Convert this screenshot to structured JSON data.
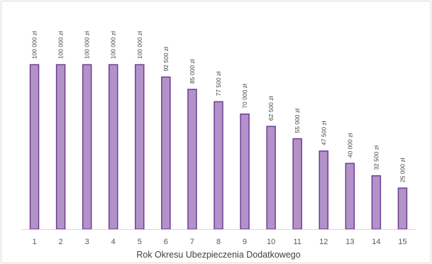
{
  "chart_data": {
    "type": "bar",
    "title": "",
    "xlabel": "Rok Okresu Ubezpieczenia Dodatkowego",
    "ylabel": "",
    "ylim": [
      0,
      135000
    ],
    "grid": false,
    "legend": "none",
    "colors": {
      "bar_fill": "#b392c9",
      "bar_stroke": "#6f3c93",
      "axis": "#d9d9d9"
    },
    "categories": [
      "1",
      "2",
      "3",
      "4",
      "5",
      "6",
      "7",
      "8",
      "9",
      "10",
      "11",
      "12",
      "13",
      "14",
      "15"
    ],
    "values": [
      100000,
      100000,
      100000,
      100000,
      100000,
      92500,
      85000,
      77500,
      70000,
      62500,
      55000,
      47500,
      40000,
      32500,
      25000
    ],
    "data_labels": [
      "100 000 zł",
      "100 000 zł",
      "100 000 zł",
      "100 000 zł",
      "100 000 zł",
      "92 500 zł",
      "85 000 zł",
      "77 500 zł",
      "70 000 zł",
      "62 500 zł",
      "55 000 zł",
      "47 500 zł",
      "40 000 zł",
      "32 500 zł",
      "25 000 zł"
    ]
  }
}
